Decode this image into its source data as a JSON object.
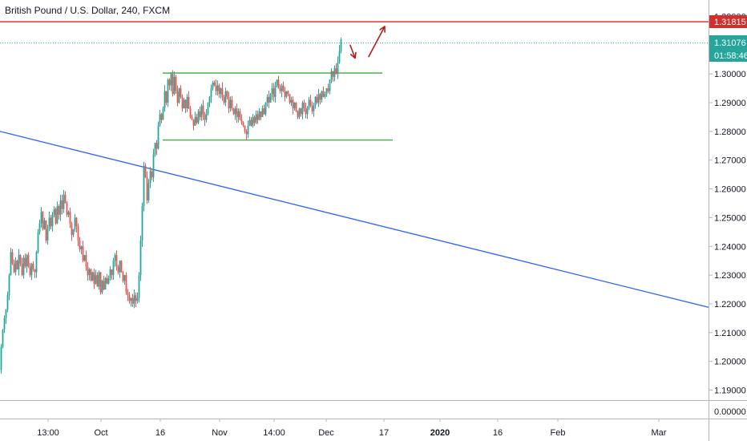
{
  "header": {
    "title": "British Pound / U.S. Dollar, 240, FXCM"
  },
  "colors": {
    "up": "#26a69a",
    "down": "#ef5350",
    "resistance": "#e53935",
    "box": "#4caf50",
    "trend": "#2962ff",
    "arrow": "#b71c1c",
    "last_price": "#26a69a",
    "axis_text": "#131722",
    "zero_line": "#787b86"
  },
  "chart_data": {
    "type": "candlestick",
    "title": "British Pound / U.S. Dollar, 240, FXCM",
    "y_axis": {
      "ylim": [
        1.1825,
        1.3315
      ],
      "ticks": [
        "1.19000",
        "1.20000",
        "1.21000",
        "1.22000",
        "1.23000",
        "1.24000",
        "1.25000",
        "1.26000",
        "1.27000",
        "1.28000",
        "1.29000",
        "1.30000",
        "1.31000",
        "1.32000"
      ]
    },
    "x_axis": {
      "ticks": [
        "13:00",
        "Oct",
        "16",
        "Nov",
        "14:00",
        "Dec",
        "17",
        "2020",
        "16",
        "Feb",
        "Mar"
      ]
    },
    "price_tags": {
      "resistance": "1.31815",
      "last_price": "1.31076",
      "countdown": "01:58:46"
    },
    "indicator_tick": "0.00000",
    "levels": {
      "resistance": 1.31815,
      "last_price": 1.31076,
      "range_high": 1.3003,
      "range_low": 1.277
    },
    "path": [
      [
        0,
        1.197
      ],
      [
        2,
        1.205
      ],
      [
        4,
        1.211
      ],
      [
        6,
        1.215
      ],
      [
        8,
        1.218
      ],
      [
        10,
        1.223
      ],
      [
        12,
        1.23
      ],
      [
        14,
        1.238
      ],
      [
        16,
        1.234
      ],
      [
        18,
        1.231
      ],
      [
        20,
        1.235
      ],
      [
        22,
        1.232
      ],
      [
        24,
        1.237
      ],
      [
        26,
        1.234
      ],
      [
        28,
        1.23
      ],
      [
        30,
        1.236
      ],
      [
        32,
        1.233
      ],
      [
        34,
        1.237
      ],
      [
        36,
        1.233
      ],
      [
        38,
        1.23
      ],
      [
        40,
        1.234
      ],
      [
        42,
        1.232
      ],
      [
        44,
        1.231
      ],
      [
        46,
        1.238
      ],
      [
        48,
        1.245
      ],
      [
        50,
        1.248
      ],
      [
        52,
        1.252
      ],
      [
        54,
        1.246
      ],
      [
        56,
        1.249
      ],
      [
        58,
        1.242
      ],
      [
        60,
        1.246
      ],
      [
        62,
        1.25
      ],
      [
        64,
        1.247
      ],
      [
        66,
        1.251
      ],
      [
        68,
        1.253
      ],
      [
        70,
        1.248
      ],
      [
        72,
        1.254
      ],
      [
        74,
        1.251
      ],
      [
        76,
        1.256
      ],
      [
        78,
        1.253
      ],
      [
        80,
        1.258
      ],
      [
        82,
        1.255
      ],
      [
        84,
        1.251
      ],
      [
        86,
        1.252
      ],
      [
        88,
        1.248
      ],
      [
        90,
        1.244
      ],
      [
        92,
        1.246
      ],
      [
        94,
        1.25
      ],
      [
        96,
        1.247
      ],
      [
        98,
        1.242
      ],
      [
        100,
        1.239
      ],
      [
        102,
        1.24
      ],
      [
        104,
        1.235
      ],
      [
        106,
        1.237
      ],
      [
        108,
        1.233
      ],
      [
        110,
        1.23
      ],
      [
        112,
        1.232
      ],
      [
        114,
        1.228
      ],
      [
        116,
        1.231
      ],
      [
        118,
        1.227
      ],
      [
        120,
        1.23
      ],
      [
        122,
        1.226
      ],
      [
        124,
        1.231
      ],
      [
        126,
        1.224
      ],
      [
        128,
        1.228
      ],
      [
        130,
        1.225
      ],
      [
        132,
        1.229
      ],
      [
        134,
        1.227
      ],
      [
        136,
        1.229
      ],
      [
        138,
        1.232
      ],
      [
        140,
        1.23
      ],
      [
        142,
        1.235
      ],
      [
        144,
        1.237
      ],
      [
        146,
        1.233
      ],
      [
        148,
        1.231
      ],
      [
        150,
        1.235
      ],
      [
        152,
        1.231
      ],
      [
        154,
        1.228
      ],
      [
        156,
        1.23
      ],
      [
        158,
        1.224
      ],
      [
        160,
        1.223
      ],
      [
        162,
        1.221
      ],
      [
        164,
        1.222
      ],
      [
        166,
        1.22
      ],
      [
        168,
        1.223
      ],
      [
        170,
        1.221
      ],
      [
        172,
        1.222
      ],
      [
        174,
        1.23
      ],
      [
        176,
        1.242
      ],
      [
        178,
        1.254
      ],
      [
        180,
        1.268
      ],
      [
        182,
        1.264
      ],
      [
        184,
        1.256
      ],
      [
        186,
        1.262
      ],
      [
        188,
        1.266
      ],
      [
        190,
        1.264
      ],
      [
        192,
        1.272
      ],
      [
        194,
        1.276
      ],
      [
        196,
        1.274
      ],
      [
        198,
        1.282
      ],
      [
        200,
        1.286
      ],
      [
        202,
        1.284
      ],
      [
        204,
        1.288
      ],
      [
        206,
        1.294
      ],
      [
        208,
        1.29
      ],
      [
        210,
        1.298
      ],
      [
        212,
        1.296
      ],
      [
        214,
        1.3
      ],
      [
        216,
        1.293
      ],
      [
        218,
        1.299
      ],
      [
        220,
        1.294
      ],
      [
        222,
        1.29
      ],
      [
        224,
        1.295
      ],
      [
        226,
        1.292
      ],
      [
        228,
        1.288
      ],
      [
        230,
        1.291
      ],
      [
        232,
        1.288
      ],
      [
        234,
        1.292
      ],
      [
        236,
        1.288
      ],
      [
        238,
        1.285
      ],
      [
        240,
        1.284
      ],
      [
        242,
        1.282
      ],
      [
        244,
        1.285
      ],
      [
        246,
        1.283
      ],
      [
        248,
        1.287
      ],
      [
        250,
        1.285
      ],
      [
        252,
        1.289
      ],
      [
        254,
        1.286
      ],
      [
        256,
        1.284
      ],
      [
        258,
        1.286
      ],
      [
        260,
        1.29
      ],
      [
        262,
        1.292
      ],
      [
        264,
        1.295
      ],
      [
        266,
        1.297
      ],
      [
        268,
        1.296
      ],
      [
        270,
        1.294
      ],
      [
        272,
        1.296
      ],
      [
        274,
        1.293
      ],
      [
        276,
        1.295
      ],
      [
        278,
        1.292
      ],
      [
        280,
        1.29
      ],
      [
        282,
        1.294
      ],
      [
        284,
        1.292
      ],
      [
        286,
        1.288
      ],
      [
        288,
        1.291
      ],
      [
        290,
        1.288
      ],
      [
        292,
        1.286
      ],
      [
        294,
        1.288
      ],
      [
        296,
        1.285
      ],
      [
        298,
        1.287
      ],
      [
        300,
        1.284
      ],
      [
        302,
        1.283
      ],
      [
        304,
        1.282
      ],
      [
        306,
        1.28
      ],
      [
        308,
        1.279
      ],
      [
        310,
        1.282
      ],
      [
        312,
        1.284
      ],
      [
        314,
        1.282
      ],
      [
        316,
        1.285
      ],
      [
        318,
        1.283
      ],
      [
        320,
        1.286
      ],
      [
        322,
        1.284
      ],
      [
        324,
        1.287
      ],
      [
        326,
        1.285
      ],
      [
        328,
        1.288
      ],
      [
        330,
        1.286
      ],
      [
        332,
        1.29
      ],
      [
        334,
        1.292
      ],
      [
        336,
        1.29
      ],
      [
        338,
        1.293
      ],
      [
        340,
        1.295
      ],
      [
        342,
        1.292
      ],
      [
        344,
        1.296
      ],
      [
        346,
        1.298
      ],
      [
        348,
        1.295
      ],
      [
        350,
        1.294
      ],
      [
        352,
        1.296
      ],
      [
        354,
        1.294
      ],
      [
        356,
        1.292
      ],
      [
        358,
        1.294
      ],
      [
        360,
        1.293
      ],
      [
        362,
        1.29
      ],
      [
        364,
        1.291
      ],
      [
        366,
        1.288
      ],
      [
        368,
        1.29
      ],
      [
        370,
        1.287
      ],
      [
        372,
        1.285
      ],
      [
        374,
        1.288
      ],
      [
        376,
        1.286
      ],
      [
        378,
        1.29
      ],
      [
        380,
        1.288
      ],
      [
        382,
        1.286
      ],
      [
        384,
        1.288
      ],
      [
        386,
        1.291
      ],
      [
        388,
        1.289
      ],
      [
        390,
        1.287
      ],
      [
        392,
        1.289
      ],
      [
        394,
        1.292
      ],
      [
        396,
        1.29
      ],
      [
        398,
        1.293
      ],
      [
        400,
        1.291
      ],
      [
        402,
        1.294
      ],
      [
        404,
        1.292
      ],
      [
        406,
        1.293
      ],
      [
        408,
        1.295
      ],
      [
        410,
        1.294
      ],
      [
        412,
        1.298
      ],
      [
        414,
        1.301
      ],
      [
        416,
        1.299
      ],
      [
        418,
        1.302
      ],
      [
        420,
        1.3
      ],
      [
        422,
        1.304
      ],
      [
        424,
        1.308
      ],
      [
        426,
        1.312
      ]
    ],
    "annotations": {
      "resistance_line": {
        "from": [
          0,
          1.31815
        ],
        "to": [
          884,
          1.31815
        ]
      },
      "range_top": {
        "from": [
          203,
          1.3003
        ],
        "to": [
          477,
          1.3003
        ]
      },
      "range_bottom": {
        "from": [
          203,
          1.277
        ],
        "to": [
          490,
          1.277
        ]
      },
      "trendline": {
        "from": [
          0,
          1.28
        ],
        "to": [
          884,
          1.2188
        ]
      },
      "arrow_down": {
        "from": [
          437,
          1.31
        ],
        "to": [
          443,
          1.3055
        ]
      },
      "arrow_up": {
        "from": [
          460,
          1.306
        ],
        "to": [
          480,
          1.3165
        ]
      }
    }
  }
}
